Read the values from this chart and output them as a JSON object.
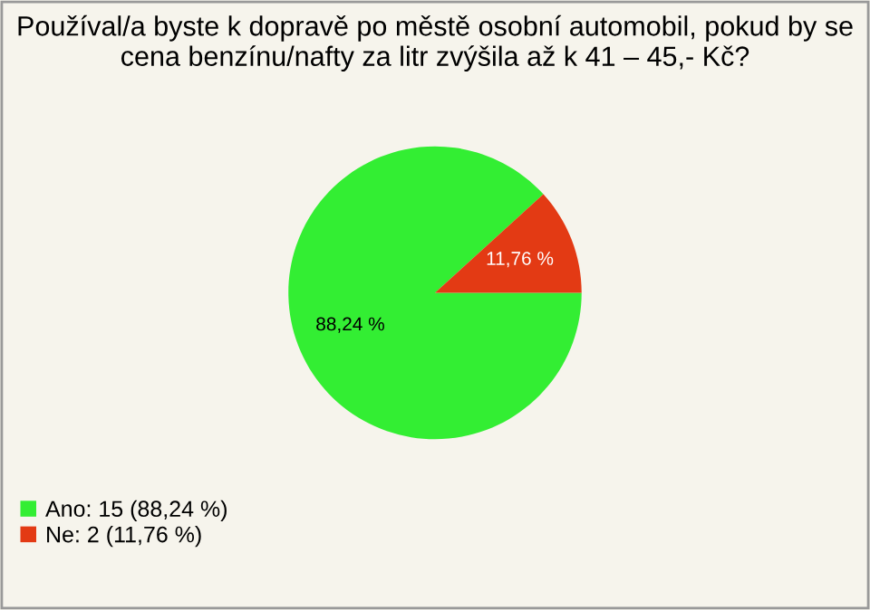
{
  "chart_data": {
    "type": "pie",
    "title": "Používal/a byste k dopravě po městě osobní automobil, pokud by se cena benzínu/nafty za litr zvýšila až k 41 – 45,- Kč?",
    "categories": [
      "Ano: 15 (88,24 %)",
      "Ne: 2 (11,76 %)"
    ],
    "values": [
      88.24,
      11.76
    ],
    "value_labels": [
      "88,24 %",
      "11,76 %"
    ],
    "colors": [
      "#33ee33",
      "#e33a14"
    ],
    "legend": "bottom left"
  }
}
